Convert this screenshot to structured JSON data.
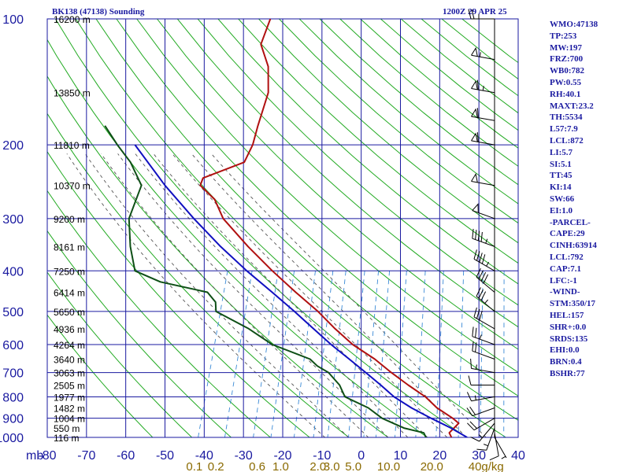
{
  "header": {
    "title_left": "BK138 (47138) Sounding",
    "title_right": "1200Z 29 APR 25"
  },
  "stats": [
    "WMO:47138",
    "TP:253",
    "MW:197",
    "FRZ:700",
    "WB0:782",
    "PW:0.55",
    "RH:40.1",
    "MAXT:23.2",
    "TH:5534",
    "L57:7.9",
    "LCL:872",
    "LI:5.7",
    "SI:5.1",
    "TT:45",
    "KI:14",
    "SW:66",
    "EI:1.0",
    "-PARCEL-",
    "CAPE:29",
    "CINH:63914",
    "LCL:792",
    "CAP:7.1",
    "LFC:-1",
    "-WIND-",
    "STM:350/17",
    "HEL:157",
    "SHR+:0.0",
    "SRDS:135",
    "EHI:0.0",
    "BRN:0.4",
    "BSHR:77"
  ],
  "colors": {
    "frame": "#1a1aa0",
    "isotherm": "#1a1aa0",
    "dry_adiabat": "#22aa22",
    "moist_adiabat": "#555555",
    "mixing_ratio": "#3a8ad6",
    "temperature": "#b01010",
    "dewpoint": "#0e4f16",
    "parcel": "#1010c0",
    "wind": "#000000",
    "mixing_label": "#8a6a00"
  },
  "chart_data": {
    "type": "line",
    "title": "",
    "xlabel": "",
    "ylabel": "mb",
    "x_unit": "°C",
    "y_unit": "mb",
    "xlim": [
      -80,
      40
    ],
    "ylim": [
      1000,
      100
    ],
    "y_scale": "log",
    "pressure_ticks": [
      100,
      200,
      300,
      400,
      500,
      600,
      700,
      800,
      900,
      1000
    ],
    "temperature_ticks": [
      -80,
      -70,
      -60,
      -50,
      -40,
      -30,
      -20,
      -10,
      0,
      10,
      20,
      30,
      40
    ],
    "temperature_tick_labels": [
      "-80",
      "-70",
      "-60",
      "-50",
      "-40",
      "-30",
      "-20",
      "-10",
      "0",
      "10",
      "20",
      "30",
      "40"
    ],
    "height_labels": [
      {
        "p": 100,
        "label": "16200 m"
      },
      {
        "p": 150,
        "label": "13850 m"
      },
      {
        "p": 200,
        "label": "11810 m"
      },
      {
        "p": 250,
        "label": "10370 m"
      },
      {
        "p": 300,
        "label": "9200 m"
      },
      {
        "p": 350,
        "label": "8161 m"
      },
      {
        "p": 400,
        "label": "7250 m"
      },
      {
        "p": 450,
        "label": "6414 m"
      },
      {
        "p": 500,
        "label": "5650 m"
      },
      {
        "p": 550,
        "label": "4936 m"
      },
      {
        "p": 600,
        "label": "4264 m"
      },
      {
        "p": 650,
        "label": "3640 m"
      },
      {
        "p": 700,
        "label": "3063 m"
      },
      {
        "p": 750,
        "label": "2505 m"
      },
      {
        "p": 800,
        "label": "1977 m"
      },
      {
        "p": 850,
        "label": "1482 m"
      },
      {
        "p": 900,
        "label": "1004 m"
      },
      {
        "p": 950,
        "label": "550 m"
      },
      {
        "p": 1000,
        "label": "116 m"
      }
    ],
    "mixing_ratio_labels": [
      "0.1",
      "0.2",
      "0.6",
      "1.0",
      "2.0",
      "3.0",
      "5.0",
      "10.0",
      "20.0",
      "40",
      "g/kg"
    ],
    "mixing_ratio_label_temps": [
      -38.5,
      -33,
      -22.5,
      -16.5,
      -7,
      -3.5,
      2,
      11,
      22,
      33,
      37.5
    ],
    "series": [
      {
        "name": "",
        "key": "temperature",
        "p": [
          1000,
          975,
          925,
          900,
          850,
          800,
          750,
          700,
          650,
          600,
          550,
          500,
          450,
          400,
          350,
          300,
          270,
          250,
          240,
          220,
          200,
          180,
          150,
          130,
          115,
          100
        ],
        "t": [
          23,
          22,
          23.5,
          21.5,
          16.5,
          12.5,
          7,
          1.5,
          -4,
          -11,
          -17,
          -23,
          -30.5,
          -38.5,
          -47,
          -56,
          -60,
          -65,
          -65,
          -56,
          -55.5,
          -56,
          -56.5,
          -59,
          -63,
          -63
        ]
      },
      {
        "name": "",
        "key": "dewpoint",
        "p": [
          1000,
          975,
          950,
          900,
          850,
          800,
          750,
          700,
          675,
          650,
          600,
          550,
          500,
          475,
          450,
          425,
          400,
          350,
          300,
          250,
          220,
          200,
          180
        ],
        "t": [
          16.5,
          15.5,
          10,
          3.5,
          -1,
          -8,
          -10.5,
          -14.5,
          -18,
          -20.5,
          -31.5,
          -39,
          -49,
          -50,
          -53,
          -66,
          -73.5,
          -77,
          -80,
          -80,
          -85,
          -90,
          -95
        ]
      },
      {
        "name": "",
        "key": "parcel",
        "p": [
          1000,
          950,
          900,
          850,
          800,
          750,
          700,
          650,
          600,
          550,
          500,
          450,
          400,
          350,
          300,
          250,
          200
        ],
        "t": [
          27,
          22,
          16,
          10,
          4.5,
          0,
          -5,
          -10.5,
          -16.5,
          -22.5,
          -29,
          -36.5,
          -45,
          -54,
          -63.5,
          -74,
          -85.5
        ]
      }
    ],
    "wind_barbs": [
      {
        "p": 1000,
        "dir": 150,
        "spd": 5
      },
      {
        "p": 975,
        "dir": 170,
        "spd": 10
      },
      {
        "p": 950,
        "dir": 200,
        "spd": 15
      },
      {
        "p": 925,
        "dir": 220,
        "spd": 15
      },
      {
        "p": 900,
        "dir": 240,
        "spd": 20
      },
      {
        "p": 850,
        "dir": 250,
        "spd": 20
      },
      {
        "p": 800,
        "dir": 260,
        "spd": 15
      },
      {
        "p": 750,
        "dir": 270,
        "spd": 10
      },
      {
        "p": 700,
        "dir": 280,
        "spd": 15
      },
      {
        "p": 650,
        "dir": 290,
        "spd": 20
      },
      {
        "p": 600,
        "dir": 290,
        "spd": 25
      },
      {
        "p": 550,
        "dir": 300,
        "spd": 30
      },
      {
        "p": 500,
        "dir": 310,
        "spd": 35
      },
      {
        "p": 450,
        "dir": 310,
        "spd": 40
      },
      {
        "p": 400,
        "dir": 300,
        "spd": 45
      },
      {
        "p": 350,
        "dir": 290,
        "spd": 45
      },
      {
        "p": 300,
        "dir": 290,
        "spd": 50
      },
      {
        "p": 250,
        "dir": 280,
        "spd": 50
      },
      {
        "p": 200,
        "dir": 280,
        "spd": 60
      },
      {
        "p": 175,
        "dir": 280,
        "spd": 60
      },
      {
        "p": 150,
        "dir": 280,
        "spd": 65
      },
      {
        "p": 125,
        "dir": 280,
        "spd": 55
      },
      {
        "p": 100,
        "dir": 270,
        "spd": 25
      }
    ]
  }
}
